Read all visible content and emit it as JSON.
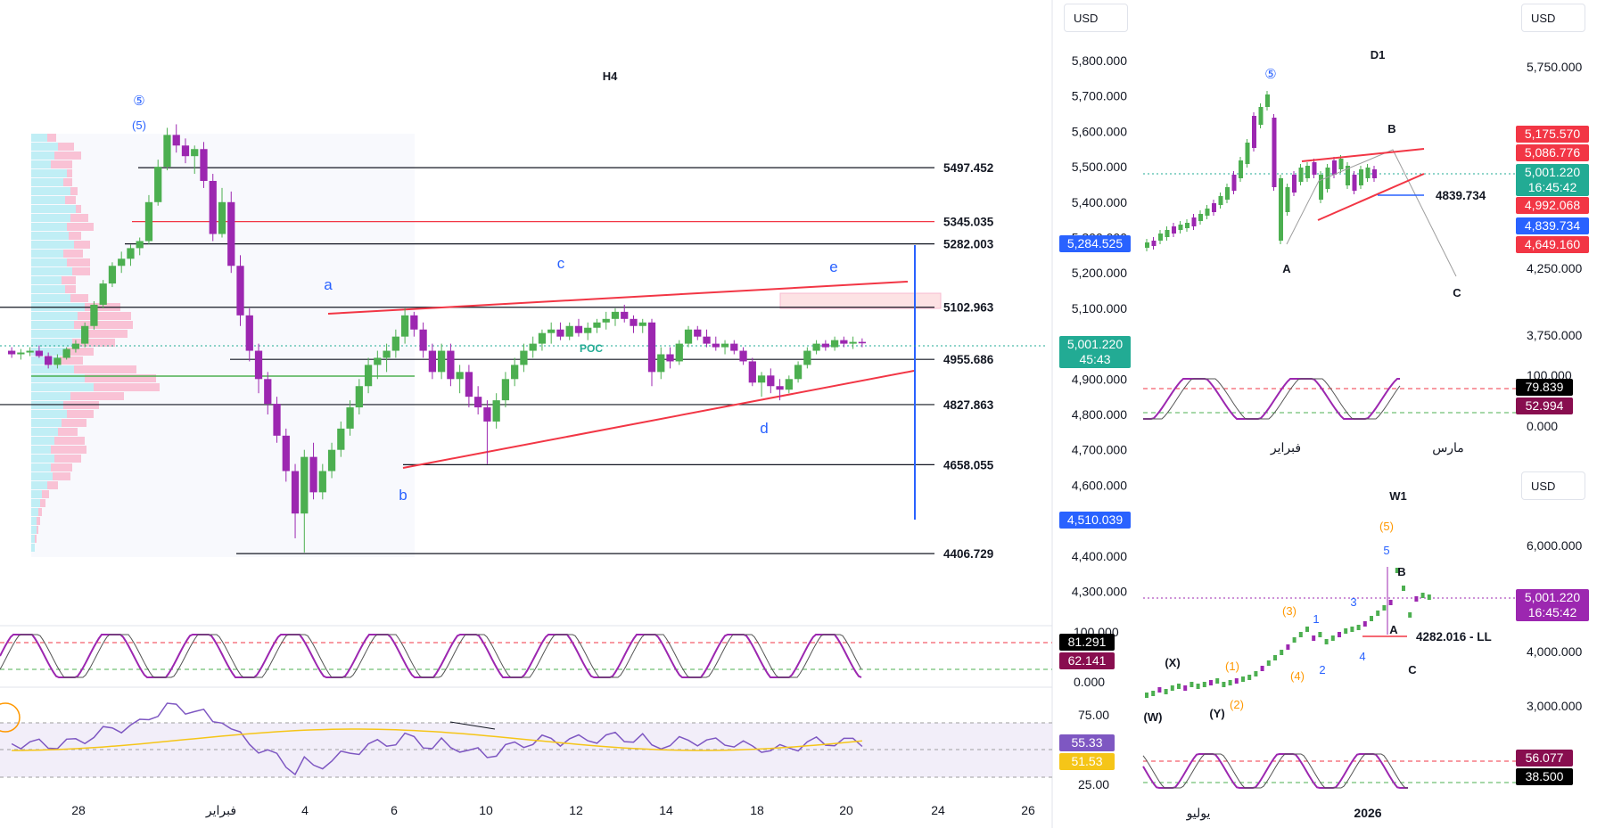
{
  "main": {
    "timeframe": "H4",
    "currency": "USD",
    "y_ticks": [
      "5,800.000",
      "5,700.000",
      "5,600.000",
      "5,500.000",
      "5,400.000",
      "5,300.000",
      "5,200.000",
      "5,100.000",
      "4,900.000",
      "4,800.000",
      "4,700.000",
      "4,600.000",
      "4,500.000",
      "4,400.000",
      "4,300.000"
    ],
    "x_ticks": [
      "28",
      "فبراير",
      "4",
      "6",
      "10",
      "12",
      "14",
      "18",
      "20",
      "24",
      "26"
    ],
    "levels": [
      {
        "value": "5497.452",
        "color": "#131722"
      },
      {
        "value": "5345.035",
        "color": "#f23645"
      },
      {
        "value": "5282.003",
        "color": "#131722"
      },
      {
        "value": "5102.963",
        "color": "#131722"
      },
      {
        "value": "4955.686",
        "color": "#131722"
      },
      {
        "value": "4827.863",
        "color": "#131722"
      },
      {
        "value": "4658.055",
        "color": "#131722"
      },
      {
        "value": "4406.729",
        "color": "#131722"
      }
    ],
    "wave_labels": [
      "a",
      "b",
      "c",
      "d",
      "e"
    ],
    "top_labels": [
      "⑤",
      "(5)"
    ],
    "poc_label": "POC",
    "price_tags": [
      {
        "text": "5,284.525",
        "color": "#2962ff"
      },
      {
        "text": "5,001.220",
        "sub": "45:43",
        "color": "#22ab94"
      },
      {
        "text": "4,510.039",
        "color": "#2962ff"
      }
    ]
  },
  "stoch_main": {
    "ticks": [
      "100.000",
      "0.000"
    ],
    "tags": [
      {
        "text": "81.291",
        "color": "#000000"
      },
      {
        "text": "62.141",
        "color": "#880e4f"
      }
    ]
  },
  "rsi_main": {
    "ticks": [
      "75.00",
      "25.00"
    ],
    "tags": [
      {
        "text": "55.33",
        "color": "#7e57c2"
      },
      {
        "text": "51.53",
        "color": "#f5c518"
      }
    ]
  },
  "d1": {
    "timeframe": "D1",
    "currency": "USD",
    "y_ticks": [
      "5,750.000",
      "4,250.000",
      "3,750.000"
    ],
    "level_label": "4839.734",
    "labels": [
      "⑤",
      "A",
      "B",
      "C"
    ],
    "x_ticks": [
      "فبراير",
      "مارس"
    ],
    "price_tags": [
      {
        "text": "5,175.570",
        "color": "#f23645"
      },
      {
        "text": "5,086.776",
        "color": "#f23645"
      },
      {
        "text": "5,001.220",
        "sub": "16:45:42",
        "color": "#22ab94"
      },
      {
        "text": "4,992.068",
        "color": "#f23645"
      },
      {
        "text": "4,839.734",
        "color": "#2962ff"
      },
      {
        "text": "4,649.160",
        "color": "#f23645"
      }
    ],
    "stoch_ticks": [
      "100.000",
      "0.000"
    ],
    "stoch_tags": [
      {
        "text": "79.839",
        "color": "#000000"
      },
      {
        "text": "52.994",
        "color": "#880e4f"
      }
    ]
  },
  "w1": {
    "timeframe": "W1",
    "currency": "USD",
    "y_ticks": [
      "6,000.000",
      "4,000.000",
      "3,000.000"
    ],
    "level_label": "4282.016 - LL",
    "labels_orange": [
      "(5)",
      "(3)",
      "(1)",
      "(4)",
      "(2)"
    ],
    "labels_blue": [
      "5",
      "3",
      "1",
      "4",
      "2"
    ],
    "labels_black": [
      "(X)",
      "(W)",
      "(Y)",
      "A",
      "B",
      "C"
    ],
    "x_ticks": [
      "يوليو",
      "2026"
    ],
    "price_tags": [
      {
        "text": "5,001.220",
        "sub": "16:45:42",
        "color": "#9c27b0"
      }
    ],
    "stoch_tags": [
      {
        "text": "56.077",
        "color": "#880e4f"
      },
      {
        "text": "38.500",
        "color": "#000000"
      }
    ]
  },
  "chart_data": {
    "type": "candlestick",
    "title": "H4",
    "unit": "USD",
    "ylim": [
      4300,
      5850
    ],
    "candles": [
      [
        4980,
        4990,
        4960,
        4970
      ],
      [
        4970,
        4985,
        4955,
        4975
      ],
      [
        4975,
        4990,
        4965,
        4980
      ],
      [
        4980,
        4995,
        4960,
        4965
      ],
      [
        4965,
        4975,
        4930,
        4940
      ],
      [
        4940,
        4970,
        4930,
        4960
      ],
      [
        4960,
        4990,
        4955,
        4985
      ],
      [
        4985,
        5010,
        4975,
        5000
      ],
      [
        5000,
        5060,
        4990,
        5050
      ],
      [
        5050,
        5120,
        5040,
        5110
      ],
      [
        5110,
        5180,
        5100,
        5170
      ],
      [
        5170,
        5230,
        5160,
        5220
      ],
      [
        5220,
        5260,
        5200,
        5240
      ],
      [
        5240,
        5280,
        5220,
        5270
      ],
      [
        5270,
        5300,
        5250,
        5290
      ],
      [
        5290,
        5420,
        5280,
        5400
      ],
      [
        5400,
        5520,
        5390,
        5500
      ],
      [
        5500,
        5610,
        5490,
        5590
      ],
      [
        5590,
        5620,
        5540,
        5560
      ],
      [
        5560,
        5580,
        5510,
        5530
      ],
      [
        5530,
        5560,
        5480,
        5550
      ],
      [
        5550,
        5570,
        5440,
        5460
      ],
      [
        5460,
        5480,
        5290,
        5310
      ],
      [
        5310,
        5440,
        5300,
        5400
      ],
      [
        5400,
        5430,
        5200,
        5220
      ],
      [
        5220,
        5250,
        5050,
        5080
      ],
      [
        5080,
        5100,
        4950,
        4980
      ],
      [
        4980,
        5000,
        4860,
        4900
      ],
      [
        4900,
        4920,
        4800,
        4830
      ],
      [
        4830,
        4850,
        4720,
        4740
      ],
      [
        4740,
        4760,
        4610,
        4640
      ],
      [
        4640,
        4660,
        4450,
        4520
      ],
      [
        4520,
        4700,
        4410,
        4680
      ],
      [
        4680,
        4720,
        4560,
        4580
      ],
      [
        4580,
        4660,
        4560,
        4640
      ],
      [
        4640,
        4720,
        4620,
        4700
      ],
      [
        4700,
        4780,
        4680,
        4760
      ],
      [
        4760,
        4840,
        4740,
        4820
      ],
      [
        4820,
        4900,
        4800,
        4880
      ],
      [
        4880,
        4960,
        4860,
        4940
      ],
      [
        4940,
        4980,
        4900,
        4960
      ],
      [
        4960,
        5000,
        4920,
        4980
      ],
      [
        4980,
        5040,
        4960,
        5020
      ],
      [
        5020,
        5100,
        5000,
        5080
      ],
      [
        5080,
        5090,
        5020,
        5040
      ],
      [
        5040,
        5060,
        4960,
        4980
      ],
      [
        4980,
        5000,
        4900,
        4920
      ],
      [
        4920,
        5000,
        4900,
        4980
      ],
      [
        4980,
        5000,
        4880,
        4900
      ],
      [
        4900,
        4940,
        4860,
        4920
      ],
      [
        4920,
        4940,
        4820,
        4850
      ],
      [
        4850,
        4880,
        4800,
        4820
      ],
      [
        4820,
        4840,
        4660,
        4780
      ],
      [
        4780,
        4860,
        4760,
        4840
      ],
      [
        4840,
        4920,
        4820,
        4900
      ],
      [
        4900,
        4960,
        4880,
        4940
      ],
      [
        4940,
        5000,
        4920,
        4980
      ],
      [
        4980,
        5020,
        4960,
        5000
      ],
      [
        5000,
        5040,
        4980,
        5030
      ],
      [
        5030,
        5060,
        5000,
        5040
      ],
      [
        5040,
        5060,
        5010,
        5020
      ],
      [
        5020,
        5060,
        5010,
        5050
      ],
      [
        5050,
        5070,
        5020,
        5030
      ],
      [
        5030,
        5060,
        5010,
        5045
      ],
      [
        5045,
        5070,
        5030,
        5060
      ],
      [
        5060,
        5090,
        5040,
        5070
      ],
      [
        5070,
        5100,
        5050,
        5090
      ],
      [
        5090,
        5110,
        5060,
        5070
      ],
      [
        5070,
        5080,
        5030,
        5050
      ],
      [
        5050,
        5070,
        5030,
        5060
      ],
      [
        5060,
        5070,
        4880,
        4920
      ],
      [
        4920,
        4990,
        4900,
        4970
      ],
      [
        4970,
        4990,
        4930,
        4950
      ],
      [
        4950,
        5010,
        4940,
        5000
      ],
      [
        5000,
        5050,
        4990,
        5040
      ],
      [
        5040,
        5050,
        5010,
        5020
      ],
      [
        5020,
        5040,
        4990,
        5000
      ],
      [
        5000,
        5020,
        4980,
        4990
      ],
      [
        4990,
        5010,
        4970,
        5000
      ],
      [
        5000,
        5010,
        4970,
        4980
      ],
      [
        4980,
        4990,
        4940,
        4950
      ],
      [
        4950,
        4960,
        4880,
        4890
      ],
      [
        4890,
        4920,
        4850,
        4910
      ],
      [
        4910,
        4930,
        4860,
        4880
      ],
      [
        4880,
        4900,
        4840,
        4870
      ],
      [
        4870,
        4910,
        4860,
        4900
      ],
      [
        4900,
        4950,
        4890,
        4940
      ],
      [
        4940,
        4990,
        4930,
        4980
      ],
      [
        4980,
        5010,
        4970,
        5000
      ],
      [
        5000,
        5010,
        4980,
        4990
      ],
      [
        4990,
        5020,
        4980,
        5010
      ],
      [
        5010,
        5020,
        4990,
        5000
      ],
      [
        5000,
        5020,
        4985,
        5005
      ],
      [
        5005,
        5015,
        4990,
        5001
      ]
    ]
  }
}
